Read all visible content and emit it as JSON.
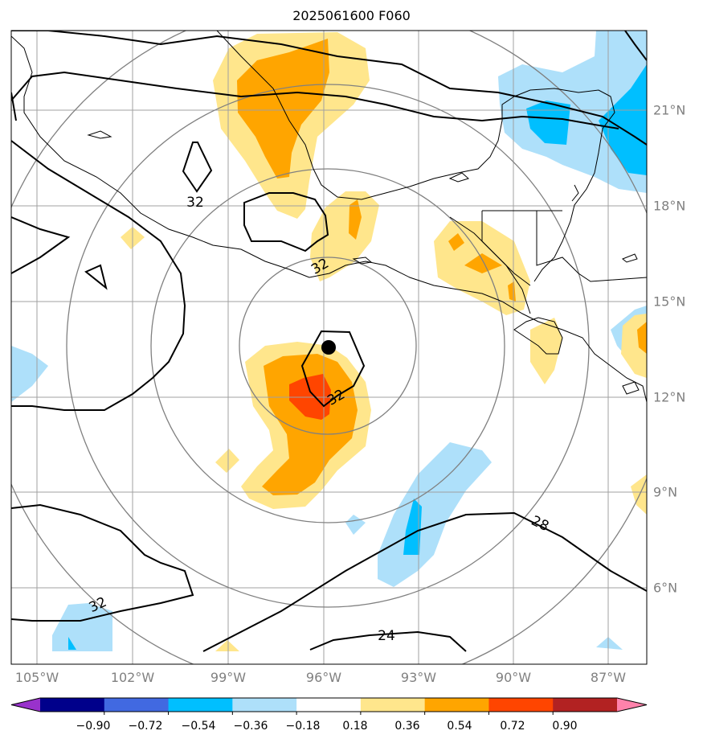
{
  "title": "2025061600 F060",
  "lon_labels": [
    "105°W",
    "102°W",
    "99°W",
    "96°W",
    "93°W",
    "90°W",
    "87°W"
  ],
  "lat_labels": [
    "21°N",
    "18°N",
    "15°N",
    "12°N",
    "9°N",
    "6°N"
  ],
  "colorbar": {
    "ticks": [
      "−0.90",
      "−0.72",
      "−0.54",
      "−0.36",
      "−0.18",
      "0.18",
      "0.36",
      "0.54",
      "0.72",
      "0.90"
    ],
    "colors": [
      "#9932cc",
      "#00008b",
      "#4169e1",
      "#00bfff",
      "#aee0fa",
      "#ffffff",
      "#ffe68c",
      "#ffa500",
      "#ff4500",
      "#b22222",
      "#ff82ab"
    ]
  },
  "contour_labels": [
    "32",
    "32",
    "32",
    "32",
    "28",
    "24"
  ],
  "storm_center": {
    "lon": -95.8,
    "lat": 13.6
  },
  "colors": {
    "light_yellow": "#ffe68c",
    "orange": "#ffa500",
    "red_orange": "#ff4500",
    "light_blue": "#aee0fa",
    "deep_sky_blue": "#00bfff",
    "grid_gray": "#808080"
  }
}
